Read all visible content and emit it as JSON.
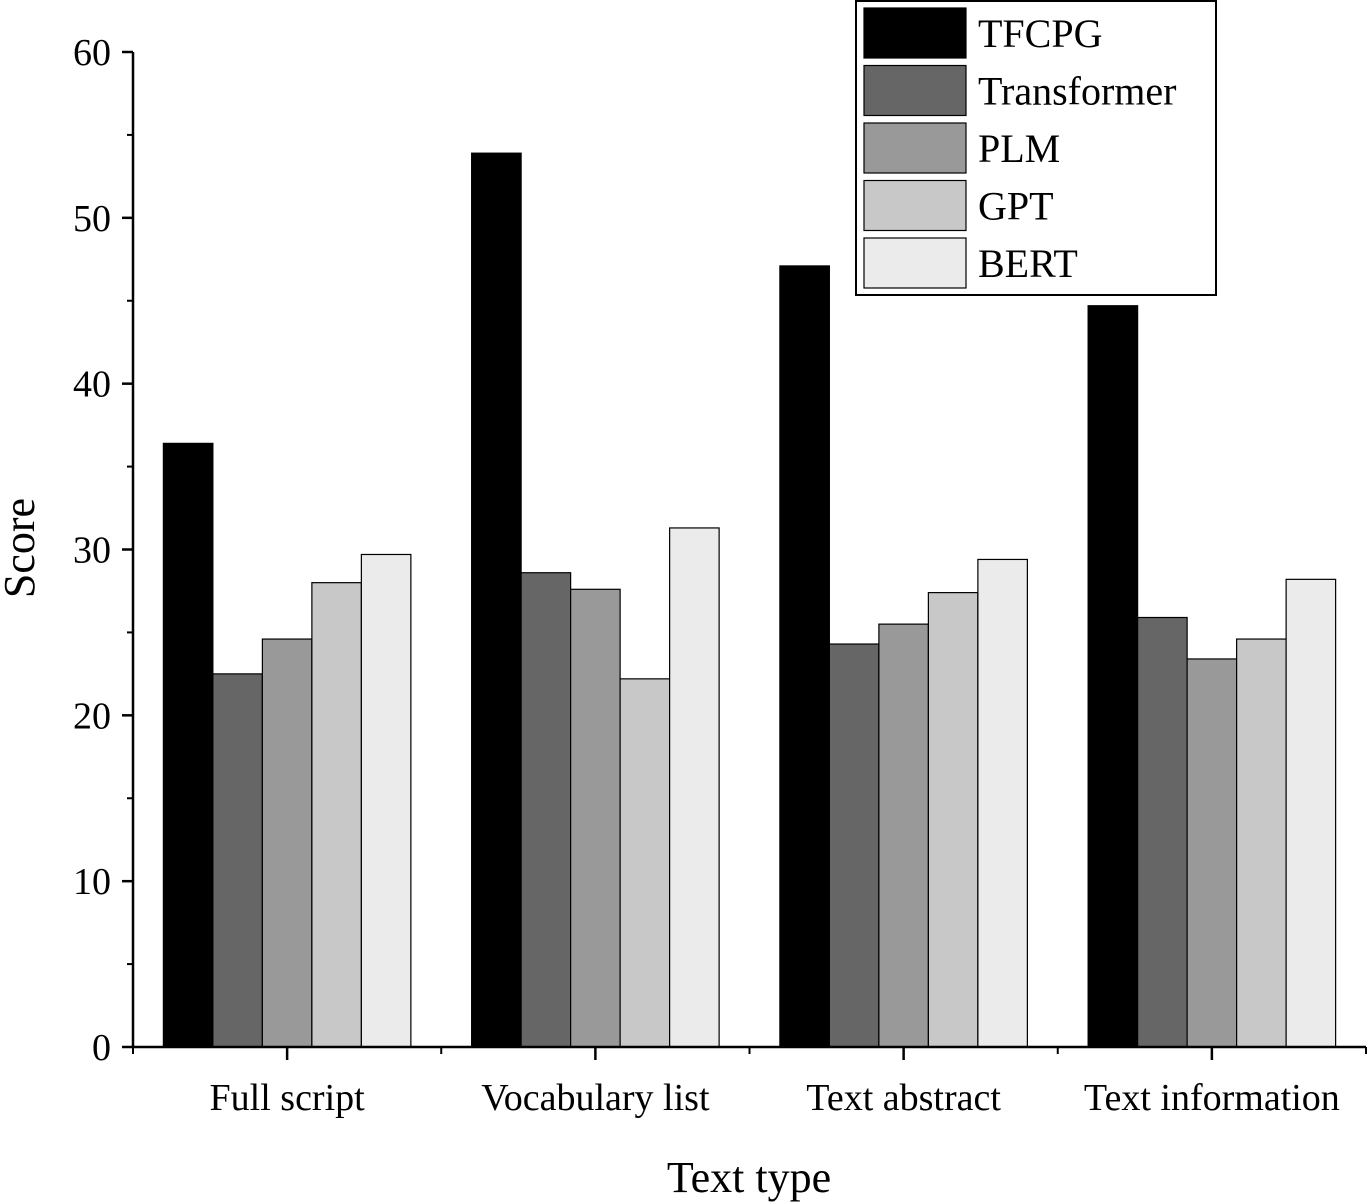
{
  "chart_data": {
    "type": "bar",
    "title": "",
    "xlabel": "Text type",
    "ylabel": "Score",
    "ylim": [
      0,
      60
    ],
    "yticks": [
      0,
      10,
      20,
      30,
      40,
      50,
      60
    ],
    "grid": false,
    "legend_position": "top-right",
    "categories": [
      "Full script",
      "Vocabulary list",
      "Text abstract",
      "Text information"
    ],
    "series": [
      {
        "name": "TFCPG",
        "color": "#000000",
        "values": [
          36.4,
          53.9,
          47.1,
          44.7
        ]
      },
      {
        "name": "Transformer",
        "color": "#666666",
        "values": [
          22.5,
          28.6,
          24.3,
          25.9
        ]
      },
      {
        "name": "PLM",
        "color": "#999999",
        "values": [
          24.6,
          27.6,
          25.5,
          23.4
        ]
      },
      {
        "name": "GPT",
        "color": "#c8c8c8",
        "values": [
          28.0,
          22.2,
          27.4,
          24.6
        ]
      },
      {
        "name": "BERT",
        "color": "#ebebeb",
        "values": [
          29.7,
          31.3,
          29.4,
          28.2
        ]
      }
    ]
  }
}
